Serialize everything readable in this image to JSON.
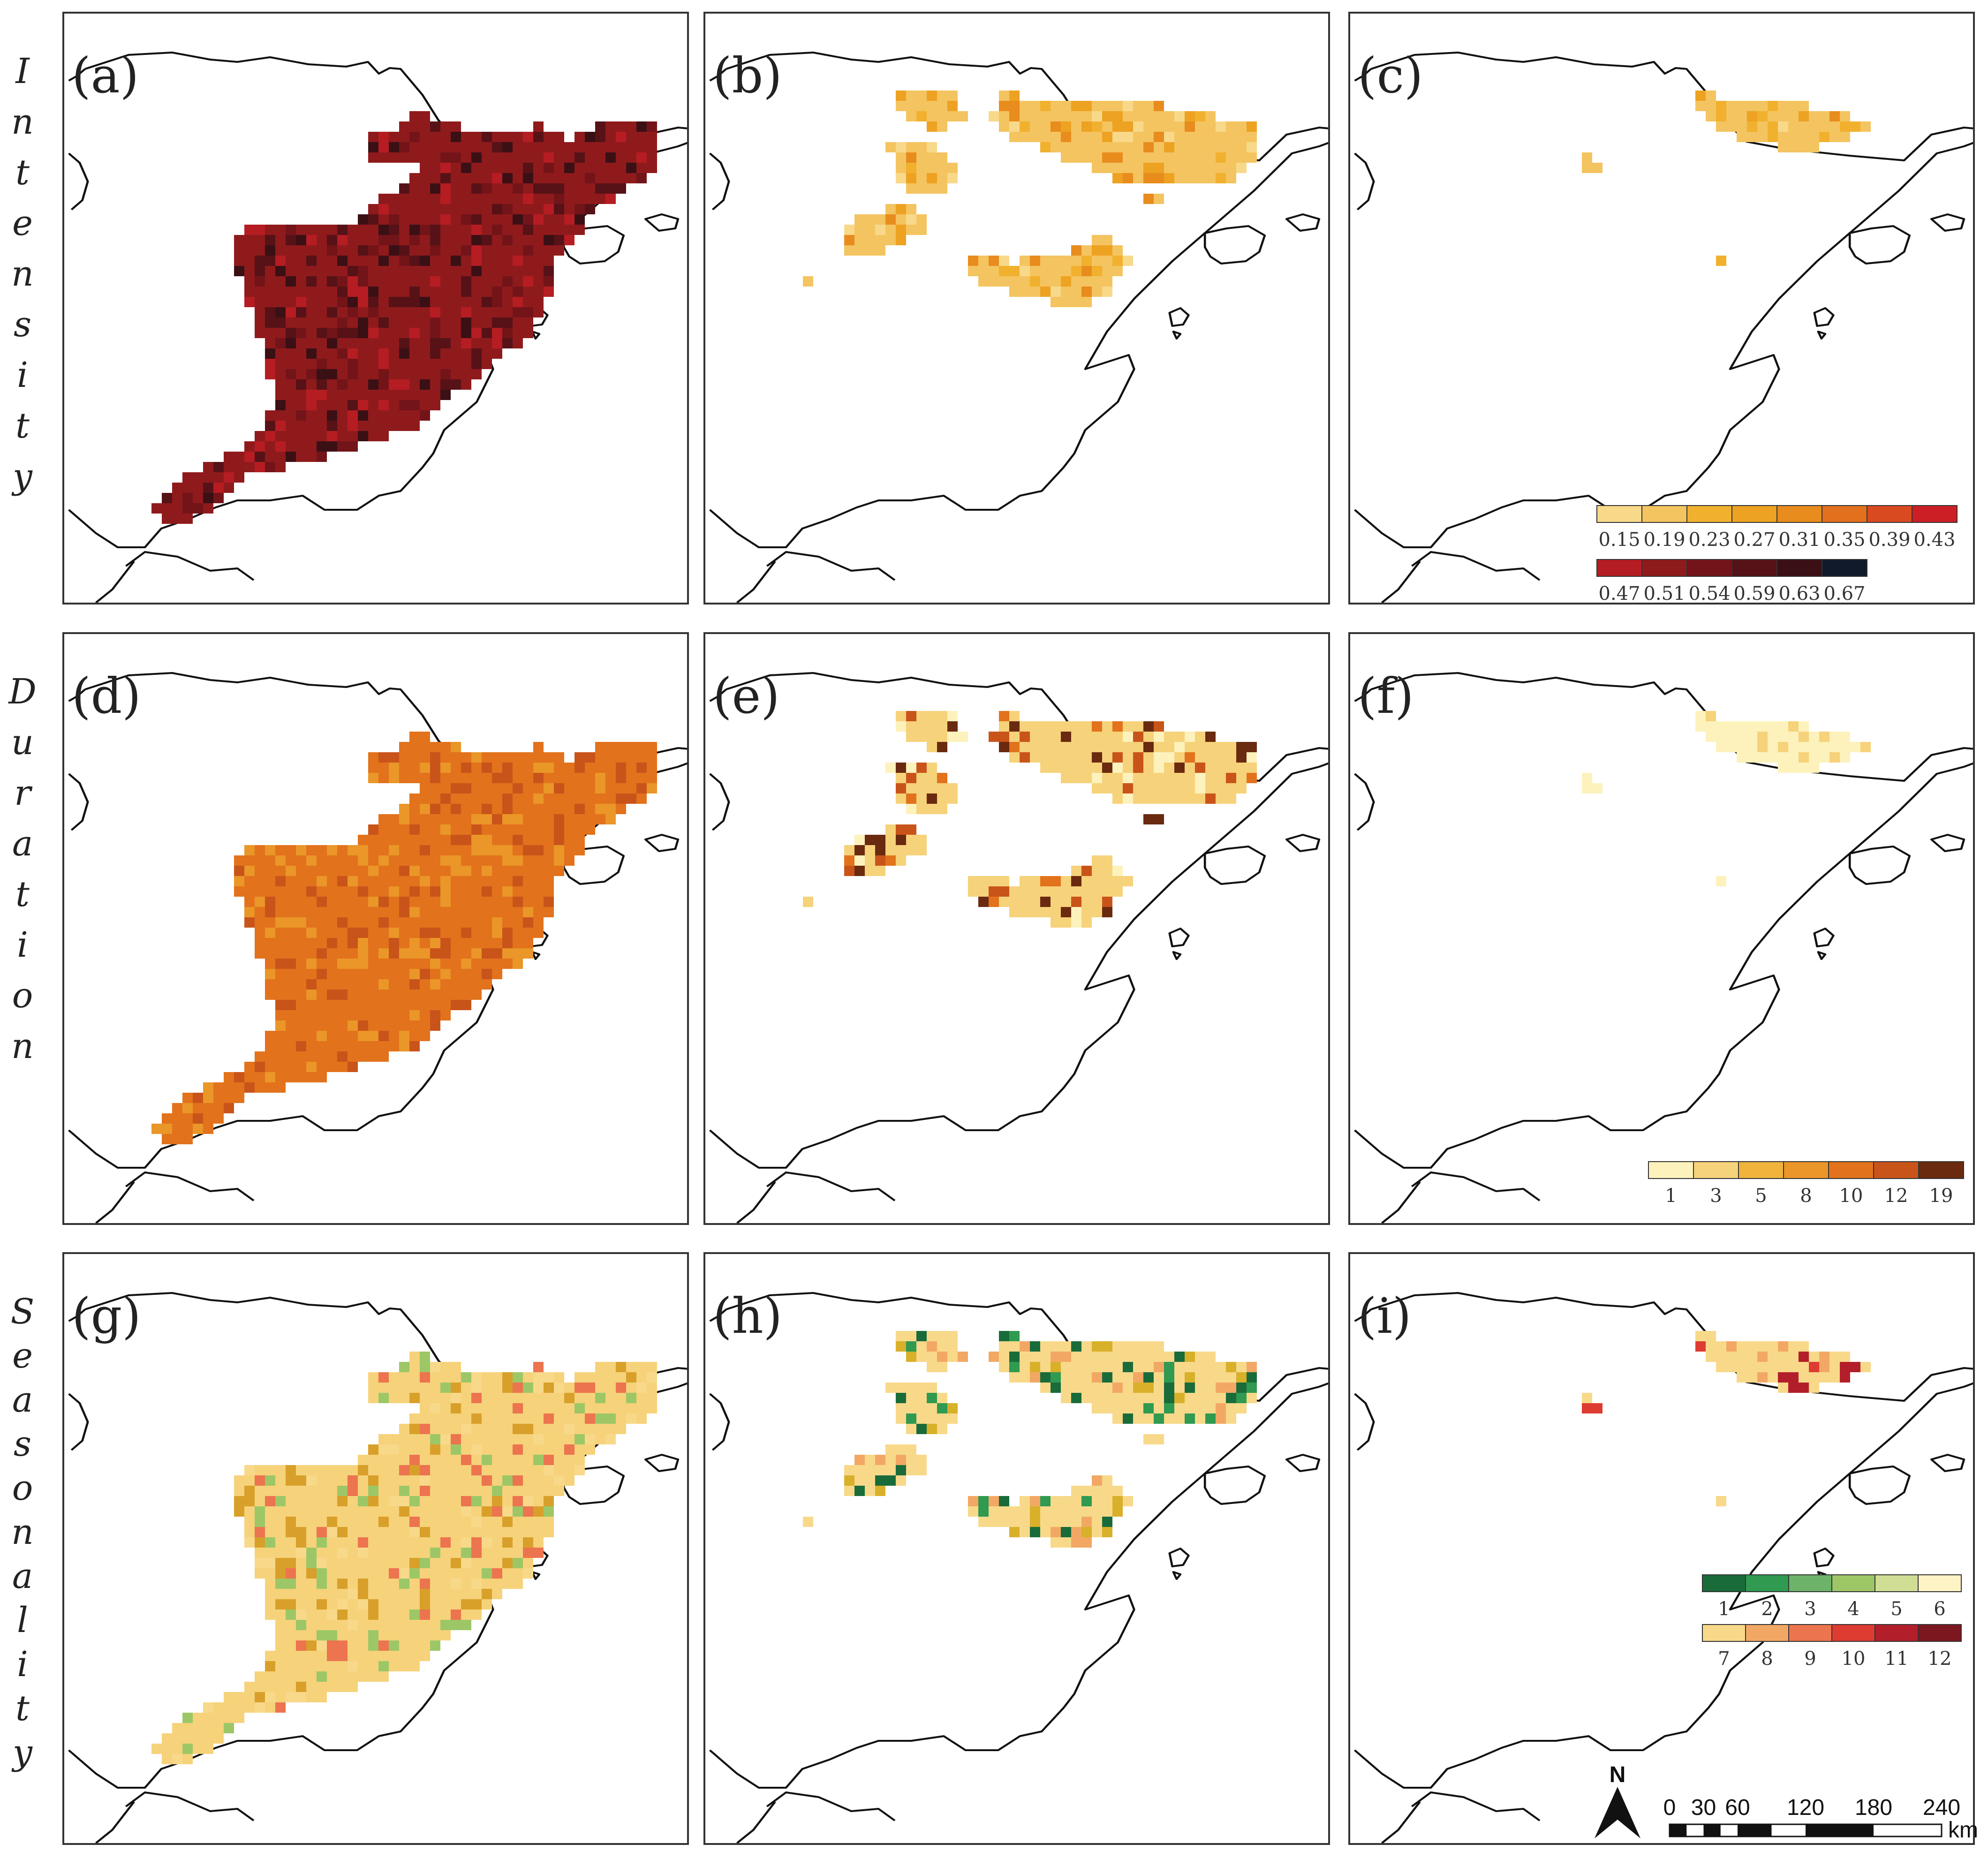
{
  "row_labels": [
    "Intensity",
    "Duration",
    "Seasonality"
  ],
  "panels": [
    {
      "label": "(a)",
      "variable": "Intensity",
      "pattern": "full",
      "palette": "intensity_high"
    },
    {
      "label": "(b)",
      "variable": "Intensity",
      "pattern": "mid",
      "palette": "intensity_low"
    },
    {
      "label": "(c)",
      "variable": "Intensity",
      "pattern": "small",
      "palette": "intensity_low"
    },
    {
      "label": "(d)",
      "variable": "Duration",
      "pattern": "full",
      "palette": "duration_high"
    },
    {
      "label": "(e)",
      "variable": "Duration",
      "pattern": "mid",
      "palette": "duration_mix"
    },
    {
      "label": "(f)",
      "variable": "Duration",
      "pattern": "small",
      "palette": "duration_low"
    },
    {
      "label": "(g)",
      "variable": "Seasonality",
      "pattern": "full",
      "palette": "season_full"
    },
    {
      "label": "(h)",
      "variable": "Seasonality",
      "pattern": "mid",
      "palette": "season_mid"
    },
    {
      "label": "(i)",
      "variable": "Seasonality",
      "pattern": "small",
      "palette": "season_small"
    }
  ],
  "legends": {
    "intensity": {
      "row1": {
        "labels": [
          "0.15",
          "0.19",
          "0.23",
          "0.27",
          "0.31",
          "0.35",
          "0.39",
          "0.43"
        ],
        "colors": [
          "#f8d98a",
          "#f4c460",
          "#f1b12e",
          "#eda222",
          "#e88c1d",
          "#e2701d",
          "#d94a20",
          "#cc1f25"
        ]
      },
      "row2": {
        "labels": [
          "0.47",
          "0.51",
          "0.54",
          "0.59",
          "0.63",
          "0.67"
        ],
        "colors": [
          "#b51d22",
          "#8f1a1c",
          "#731419",
          "#561217",
          "#3a1015",
          "#111a2b"
        ]
      }
    },
    "duration": {
      "labels": [
        "1",
        "3",
        "5",
        "8",
        "10",
        "12",
        "19"
      ],
      "colors": [
        "#fdf2bc",
        "#f6d27a",
        "#f0b43c",
        "#ea9628",
        "#e2721c",
        "#c9541a",
        "#6a2a0f"
      ]
    },
    "seasonality": {
      "row1": {
        "labels": [
          "1",
          "2",
          "3",
          "4",
          "5",
          "6"
        ],
        "colors": [
          "#1a6b3a",
          "#2f9a50",
          "#6db36a",
          "#9dc766",
          "#d0de95",
          "#fdf3c4"
        ]
      },
      "row2": {
        "labels": [
          "7",
          "8",
          "9",
          "10",
          "11",
          "12"
        ],
        "colors": [
          "#f8d98a",
          "#f2a864",
          "#ec744e",
          "#de3b32",
          "#b21f2a",
          "#7c1720"
        ]
      }
    }
  },
  "scale_bar": {
    "ticks": [
      "0",
      "30",
      "60",
      "120",
      "180",
      "240"
    ],
    "unit": "km",
    "north": "N"
  },
  "colors": {
    "intensity_high": [
      "#8f1a1c",
      "#731419",
      "#b51d22",
      "#561217",
      "#3a1015"
    ],
    "intensity_low": [
      "#f4c460",
      "#f1b12e",
      "#eda222",
      "#f8d98a",
      "#e88c1d"
    ],
    "duration_high": [
      "#e2721c",
      "#ea9628",
      "#c9541a"
    ],
    "duration_mix": [
      "#f6d27a",
      "#fdf2bc",
      "#c9541a",
      "#e2721c",
      "#6a2a0f"
    ],
    "duration_low": [
      "#fdf2bc",
      "#f6d27a"
    ],
    "season_full": [
      "#f6d27a",
      "#ec744e",
      "#f8d98a",
      "#d8a02a",
      "#9dc766"
    ],
    "season_mid": [
      "#f8d98a",
      "#d8b02a",
      "#f2a864",
      "#1a6b3a",
      "#2f9a50"
    ],
    "season_small": [
      "#f8d98a",
      "#de3b32",
      "#f2a864",
      "#b21f2a"
    ]
  }
}
